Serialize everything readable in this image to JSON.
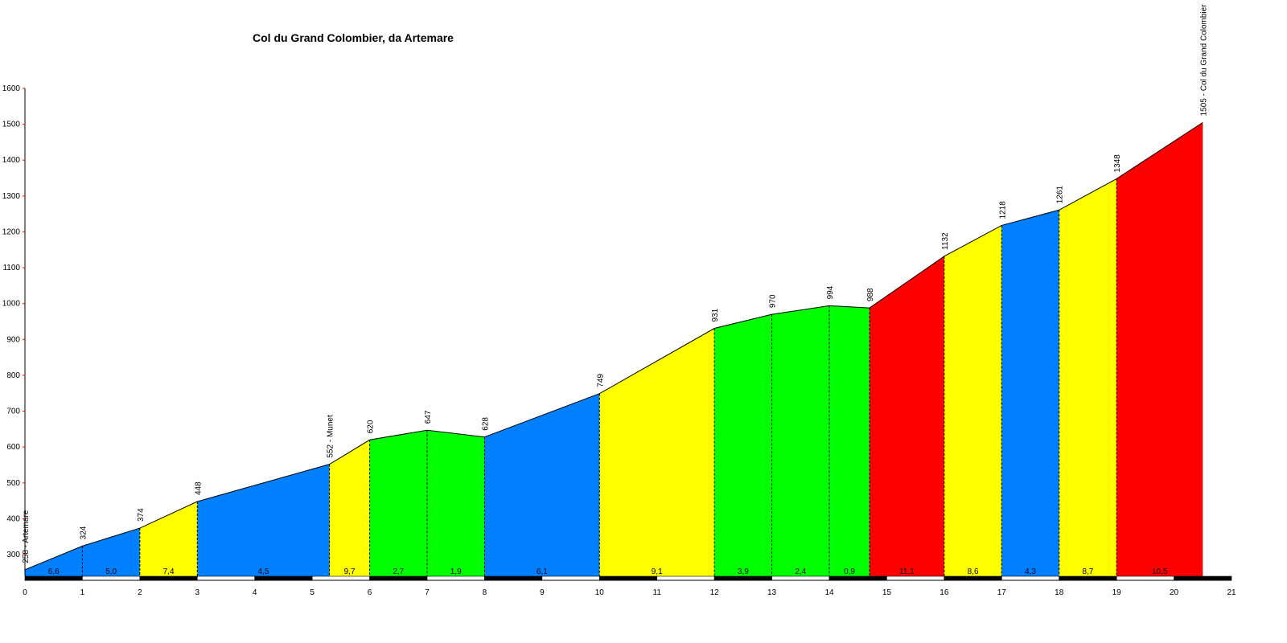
{
  "chart_data": {
    "type": "area",
    "title": "Col du Grand Colombier, da Artemare",
    "xlabel": "",
    "ylabel": "",
    "xlim": [
      0,
      21
    ],
    "ylim": [
      240,
      1600
    ],
    "x_ticks": [
      0,
      1,
      2,
      3,
      4,
      5,
      6,
      7,
      8,
      9,
      10,
      11,
      12,
      13,
      14,
      15,
      16,
      17,
      18,
      19,
      20,
      21
    ],
    "y_ticks": [
      300,
      400,
      500,
      600,
      700,
      800,
      900,
      1000,
      1100,
      1200,
      1300,
      1400,
      1500,
      1600
    ],
    "grid": false,
    "points": [
      {
        "km": 0,
        "elev": 258,
        "label": "258 - Artemare"
      },
      {
        "km": 1,
        "elev": 324,
        "label": "324"
      },
      {
        "km": 2,
        "elev": 374,
        "label": "374"
      },
      {
        "km": 3,
        "elev": 448,
        "label": "448"
      },
      {
        "km": 5.3,
        "elev": 552,
        "label": "552 - Munet"
      },
      {
        "km": 6,
        "elev": 620,
        "label": "620"
      },
      {
        "km": 7,
        "elev": 647,
        "label": "647"
      },
      {
        "km": 8,
        "elev": 628,
        "label": "628"
      },
      {
        "km": 10,
        "elev": 749,
        "label": "749"
      },
      {
        "km": 12,
        "elev": 931,
        "label": "931"
      },
      {
        "km": 13,
        "elev": 970,
        "label": "970"
      },
      {
        "km": 14,
        "elev": 994,
        "label": "994"
      },
      {
        "km": 14.7,
        "elev": 988,
        "label": "988"
      },
      {
        "km": 16,
        "elev": 1132,
        "label": "1132"
      },
      {
        "km": 17,
        "elev": 1218,
        "label": "1218"
      },
      {
        "km": 18,
        "elev": 1261,
        "label": "1261"
      },
      {
        "km": 19,
        "elev": 1348,
        "label": "1348"
      },
      {
        "km": 20.5,
        "elev": 1505,
        "label": "1505 - Col du Grand Colombier"
      }
    ],
    "segments": [
      {
        "gradient": "6,6",
        "color": "#0080ff"
      },
      {
        "gradient": "5,0",
        "color": "#0080ff"
      },
      {
        "gradient": "7,4",
        "color": "#ffff00"
      },
      {
        "gradient": "4,5",
        "color": "#0080ff"
      },
      {
        "gradient": "9,7",
        "color": "#ffff00"
      },
      {
        "gradient": "2,7",
        "color": "#00ff00"
      },
      {
        "gradient": "1,9",
        "color": "#00ff00"
      },
      {
        "gradient": "6,1",
        "color": "#0080ff"
      },
      {
        "gradient": "9,1",
        "color": "#ffff00"
      },
      {
        "gradient": "3,9",
        "color": "#00ff00"
      },
      {
        "gradient": "2,4",
        "color": "#00ff00"
      },
      {
        "gradient": "0,9",
        "color": "#00ff00"
      },
      {
        "gradient": "11,1",
        "color": "#ff0000"
      },
      {
        "gradient": "8,6",
        "color": "#ffff00"
      },
      {
        "gradient": "4,3",
        "color": "#0080ff"
      },
      {
        "gradient": "8,7",
        "color": "#ffff00"
      },
      {
        "gradient": "10,5",
        "color": "#ff0000"
      }
    ]
  }
}
